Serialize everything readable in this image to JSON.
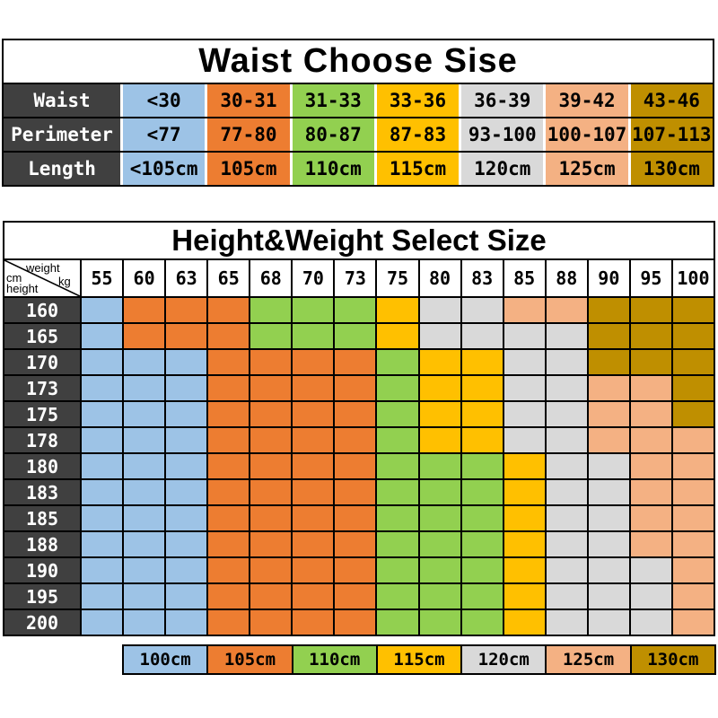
{
  "colors": {
    "blue": "#9DC3E6",
    "orange": "#ED7D31",
    "green": "#92D050",
    "yellow": "#FFC000",
    "gray": "#D9D9D9",
    "peach": "#F4B183",
    "gold": "#BF8F00",
    "dark": "#404040",
    "border": "#000000"
  },
  "chart_data": [
    {
      "type": "table",
      "title": "Waist Choose Sise",
      "row_headers": [
        "Waist",
        "Perimeter",
        "Length"
      ],
      "rows": [
        [
          "<30",
          "30-31",
          "31-33",
          "33-36",
          "36-39",
          "39-42",
          "43-46"
        ],
        [
          "<77",
          "77-80",
          "80-87",
          "87-83",
          "93-100",
          "100-107",
          "107-113"
        ],
        [
          "<105cm",
          "105cm",
          "110cm",
          "115cm",
          "120cm",
          "125cm",
          "130cm"
        ]
      ],
      "column_colors": [
        "blue",
        "orange",
        "green",
        "yellow",
        "gray",
        "peach",
        "gold"
      ]
    },
    {
      "type": "heatmap",
      "title": "Height&Weight Select Size",
      "corner": {
        "top": "weight",
        "top_unit": "kg",
        "left_unit": "cm",
        "bottom": "height"
      },
      "x_label": "weight kg",
      "x": [
        "55",
        "60",
        "63",
        "65",
        "68",
        "70",
        "73",
        "75",
        "80",
        "83",
        "85",
        "88",
        "90",
        "95",
        "100"
      ],
      "y_label": "cm height",
      "y": [
        "160",
        "165",
        "170",
        "173",
        "175",
        "178",
        "180",
        "183",
        "185",
        "188",
        "190",
        "195",
        "200"
      ],
      "cells": [
        [
          "100cm",
          "105cm",
          "105cm",
          "105cm",
          "110cm",
          "110cm",
          "110cm",
          "115cm",
          "120cm",
          "120cm",
          "125cm",
          "125cm",
          "130cm",
          "130cm",
          "130cm"
        ],
        [
          "100cm",
          "105cm",
          "105cm",
          "105cm",
          "110cm",
          "110cm",
          "110cm",
          "115cm",
          "120cm",
          "120cm",
          "120cm",
          "120cm",
          "130cm",
          "130cm",
          "130cm"
        ],
        [
          "100cm",
          "100cm",
          "100cm",
          "105cm",
          "105cm",
          "105cm",
          "105cm",
          "110cm",
          "115cm",
          "115cm",
          "120cm",
          "120cm",
          "130cm",
          "130cm",
          "130cm"
        ],
        [
          "100cm",
          "100cm",
          "100cm",
          "105cm",
          "105cm",
          "105cm",
          "105cm",
          "110cm",
          "115cm",
          "115cm",
          "120cm",
          "120cm",
          "125cm",
          "125cm",
          "130cm"
        ],
        [
          "100cm",
          "100cm",
          "100cm",
          "105cm",
          "105cm",
          "105cm",
          "105cm",
          "110cm",
          "115cm",
          "115cm",
          "120cm",
          "120cm",
          "125cm",
          "125cm",
          "130cm"
        ],
        [
          "100cm",
          "100cm",
          "100cm",
          "105cm",
          "105cm",
          "105cm",
          "105cm",
          "110cm",
          "115cm",
          "115cm",
          "120cm",
          "120cm",
          "125cm",
          "125cm",
          "125cm"
        ],
        [
          "100cm",
          "100cm",
          "100cm",
          "105cm",
          "105cm",
          "105cm",
          "105cm",
          "110cm",
          "110cm",
          "110cm",
          "115cm",
          "120cm",
          "120cm",
          "125cm",
          "125cm"
        ],
        [
          "100cm",
          "100cm",
          "100cm",
          "105cm",
          "105cm",
          "105cm",
          "105cm",
          "110cm",
          "110cm",
          "110cm",
          "115cm",
          "120cm",
          "120cm",
          "125cm",
          "125cm"
        ],
        [
          "100cm",
          "100cm",
          "100cm",
          "105cm",
          "105cm",
          "105cm",
          "105cm",
          "110cm",
          "110cm",
          "110cm",
          "115cm",
          "120cm",
          "120cm",
          "125cm",
          "125cm"
        ],
        [
          "100cm",
          "100cm",
          "100cm",
          "105cm",
          "105cm",
          "105cm",
          "105cm",
          "110cm",
          "110cm",
          "110cm",
          "115cm",
          "120cm",
          "120cm",
          "125cm",
          "125cm"
        ],
        [
          "100cm",
          "100cm",
          "100cm",
          "105cm",
          "105cm",
          "105cm",
          "105cm",
          "110cm",
          "110cm",
          "110cm",
          "115cm",
          "120cm",
          "120cm",
          "120cm",
          "125cm"
        ],
        [
          "100cm",
          "100cm",
          "100cm",
          "105cm",
          "105cm",
          "105cm",
          "105cm",
          "110cm",
          "110cm",
          "110cm",
          "115cm",
          "120cm",
          "120cm",
          "120cm",
          "125cm"
        ],
        [
          "100cm",
          "100cm",
          "100cm",
          "105cm",
          "105cm",
          "105cm",
          "105cm",
          "110cm",
          "110cm",
          "110cm",
          "115cm",
          "120cm",
          "120cm",
          "120cm",
          "125cm"
        ]
      ],
      "legend": [
        {
          "label": "100cm",
          "color": "blue"
        },
        {
          "label": "105cm",
          "color": "orange"
        },
        {
          "label": "110cm",
          "color": "green"
        },
        {
          "label": "115cm",
          "color": "yellow"
        },
        {
          "label": "120cm",
          "color": "gray"
        },
        {
          "label": "125cm",
          "color": "peach"
        },
        {
          "label": "130cm",
          "color": "gold"
        }
      ],
      "legend_position": "bottom"
    }
  ]
}
